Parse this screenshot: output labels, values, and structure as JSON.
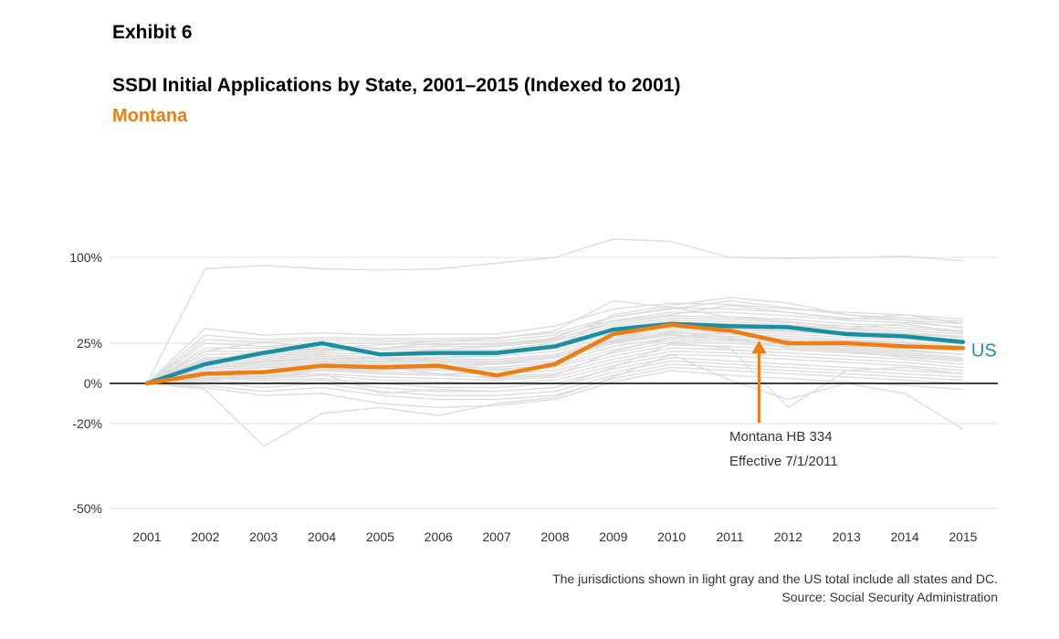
{
  "header": {
    "exhibit": "Exhibit 6",
    "title": "SSDI Initial Applications by State, 2001–2015 (Indexed to 2001)",
    "subtitle": "Montana"
  },
  "footnote": {
    "line1": "The jurisdictions shown in light gray and the US total include all states and DC.",
    "line2": "Source: Social Security Administration"
  },
  "colors": {
    "us": "#1a8fa3",
    "highlight": "#ee7d13",
    "background_lines": "#dddddd",
    "gridline": "#e8e8e8",
    "zero_line": "#000000"
  },
  "chart_data": {
    "type": "line",
    "title": "SSDI Initial Applications by State, 2001–2015 (Indexed to 2001)",
    "subtitle": "Montana",
    "x": [
      "2001",
      "2002",
      "2003",
      "2004",
      "2005",
      "2006",
      "2007",
      "2008",
      "2009",
      "2010",
      "2011",
      "2012",
      "2013",
      "2014",
      "2015"
    ],
    "y_ticks": [
      {
        "value": 100,
        "label": "100%"
      },
      {
        "value": 25,
        "label": "25%"
      },
      {
        "value": 0,
        "label": "0%"
      },
      {
        "value": -20,
        "label": "-20%"
      },
      {
        "value": -50,
        "label": "-50%"
      }
    ],
    "ylim": [
      -50,
      100
    ],
    "grid": true,
    "series": [
      {
        "name": "US",
        "role": "us",
        "values": [
          0,
          12,
          19,
          25,
          18,
          19,
          19,
          23,
          37,
          42,
          40,
          39,
          33,
          31,
          26
        ]
      },
      {
        "name": "Montana",
        "role": "highlight",
        "values": [
          0,
          6,
          7,
          11,
          10,
          11,
          5,
          12,
          33,
          41,
          36,
          25,
          25,
          23,
          22
        ]
      }
    ],
    "background_series": [
      [
        0,
        90,
        93,
        90,
        89,
        90,
        95,
        100,
        116,
        114,
        100,
        99,
        100,
        101,
        97
      ],
      [
        0,
        38,
        32,
        34,
        32,
        33,
        33,
        40,
        55,
        60,
        59,
        55,
        52,
        50,
        46
      ],
      [
        0,
        32,
        28,
        30,
        29,
        29,
        30,
        34,
        48,
        56,
        55,
        52,
        47,
        45,
        42
      ],
      [
        0,
        28,
        26,
        28,
        27,
        27,
        27,
        32,
        45,
        52,
        52,
        49,
        45,
        43,
        39
      ],
      [
        0,
        25,
        23,
        25,
        25,
        24,
        25,
        29,
        42,
        49,
        48,
        46,
        42,
        40,
        36
      ],
      [
        0,
        22,
        22,
        24,
        22,
        23,
        23,
        27,
        40,
        47,
        46,
        43,
        40,
        38,
        35
      ],
      [
        0,
        20,
        20,
        22,
        21,
        21,
        21,
        25,
        38,
        45,
        44,
        41,
        38,
        36,
        33
      ],
      [
        0,
        18,
        19,
        21,
        19,
        19,
        20,
        24,
        36,
        43,
        42,
        40,
        37,
        34,
        31
      ],
      [
        0,
        16,
        17,
        19,
        18,
        18,
        18,
        22,
        34,
        41,
        40,
        38,
        35,
        33,
        30
      ],
      [
        0,
        15,
        16,
        18,
        16,
        16,
        17,
        20,
        32,
        40,
        38,
        36,
        33,
        31,
        28
      ],
      [
        0,
        14,
        15,
        17,
        15,
        15,
        15,
        18,
        30,
        38,
        37,
        35,
        32,
        30,
        27
      ],
      [
        0,
        13,
        14,
        16,
        14,
        14,
        14,
        17,
        28,
        36,
        35,
        33,
        30,
        28,
        25
      ],
      [
        0,
        12,
        13,
        15,
        13,
        13,
        13,
        16,
        27,
        34,
        33,
        31,
        28,
        26,
        23
      ],
      [
        0,
        11,
        12,
        14,
        12,
        12,
        12,
        14,
        25,
        32,
        31,
        29,
        27,
        25,
        22
      ],
      [
        0,
        10,
        11,
        13,
        11,
        10,
        10,
        13,
        23,
        30,
        29,
        27,
        25,
        23,
        20
      ],
      [
        0,
        9,
        10,
        12,
        10,
        9,
        9,
        11,
        21,
        28,
        27,
        25,
        23,
        21,
        18
      ],
      [
        0,
        8,
        8,
        11,
        9,
        8,
        8,
        10,
        19,
        26,
        25,
        23,
        21,
        19,
        16
      ],
      [
        0,
        7,
        7,
        9,
        7,
        6,
        6,
        8,
        17,
        24,
        23,
        21,
        19,
        17,
        14
      ],
      [
        0,
        6,
        6,
        8,
        6,
        5,
        4,
        6,
        15,
        22,
        21,
        19,
        17,
        15,
        12
      ],
      [
        0,
        5,
        4,
        6,
        4,
        3,
        2,
        4,
        13,
        20,
        19,
        17,
        15,
        13,
        10
      ],
      [
        0,
        4,
        3,
        5,
        2,
        1,
        0,
        2,
        11,
        18,
        17,
        15,
        13,
        11,
        8
      ],
      [
        0,
        3,
        2,
        3,
        0,
        -2,
        -2,
        0,
        9,
        16,
        14,
        12,
        10,
        8,
        6
      ],
      [
        0,
        2,
        0,
        2,
        -2,
        -4,
        -4,
        -2,
        7,
        14,
        12,
        10,
        8,
        6,
        4
      ],
      [
        0,
        1,
        -2,
        0,
        -4,
        -6,
        -6,
        -4,
        5,
        12,
        10,
        8,
        6,
        4,
        2
      ],
      [
        0,
        -1,
        -4,
        -2,
        -6,
        -8,
        -8,
        -6,
        3,
        10,
        8,
        6,
        4,
        2,
        0
      ],
      [
        0,
        -2,
        -6,
        -5,
        -10,
        -12,
        -11,
        -8,
        1,
        8,
        5,
        3,
        1,
        -1,
        -3
      ],
      [
        0,
        -3,
        -28,
        -15,
        -12,
        -16,
        -10,
        -7,
        4,
        18,
        2,
        -8,
        0,
        -5,
        -22
      ],
      [
        0,
        5,
        8,
        12,
        14,
        16,
        18,
        22,
        50,
        58,
        65,
        60,
        50,
        45,
        38
      ],
      [
        0,
        20,
        26,
        22,
        24,
        27,
        29,
        36,
        62,
        56,
        48,
        44,
        38,
        42,
        34
      ],
      [
        0,
        2,
        4,
        8,
        10,
        6,
        3,
        5,
        20,
        30,
        35,
        28,
        20,
        18,
        15
      ],
      [
        0,
        12,
        18,
        20,
        22,
        25,
        24,
        28,
        44,
        50,
        58,
        52,
        46,
        50,
        42
      ],
      [
        0,
        9,
        14,
        15,
        16,
        14,
        12,
        14,
        30,
        35,
        30,
        22,
        20,
        16,
        14
      ],
      [
        0,
        3,
        5,
        6,
        -5,
        -3,
        -4,
        -2,
        10,
        25,
        22,
        -12,
        8,
        10,
        6
      ],
      [
        0,
        14,
        20,
        22,
        18,
        21,
        23,
        30,
        48,
        55,
        62,
        56,
        50,
        47,
        44
      ],
      [
        0,
        6,
        10,
        9,
        8,
        10,
        12,
        16,
        26,
        33,
        28,
        24,
        22,
        20,
        18
      ]
    ]
  },
  "annotation": {
    "line1": "Montana HB 334",
    "line2": "Effective 7/1/2011"
  }
}
